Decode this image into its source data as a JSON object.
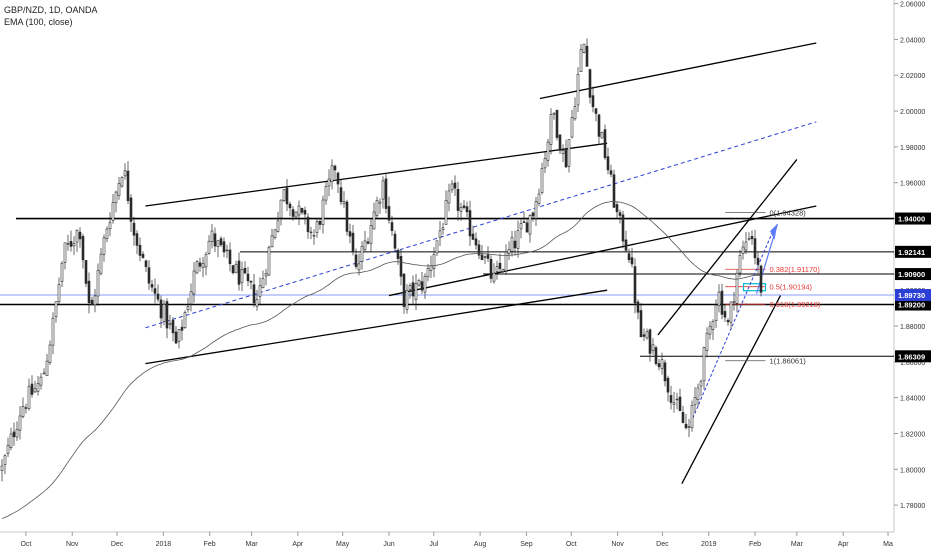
{
  "legend": {
    "title": "GBP/NZD, 1D, OANDA",
    "indicator": "EMA (100, close)"
  },
  "colors": {
    "candle": "#2a2a2a",
    "ema": "#555555",
    "channel": "#000000",
    "midline": "#2b3fd6",
    "current_line": "#3d5afe",
    "fib_red": "#e53935",
    "fib_box": "#00bcd4",
    "label_bg": "#000000",
    "current_label_bg": "#2b3fd6"
  },
  "chart_data": {
    "type": "candlestick",
    "title": "GBP/NZD, 1D, OANDA",
    "x_axis": {
      "ticks": [
        "Oct",
        "Nov",
        "Dec",
        "2018",
        "Feb",
        "Mar",
        "Apr",
        "May",
        "Jun",
        "Jul",
        "Aug",
        "Sep",
        "Oct",
        "Nov",
        "Dec",
        "2019",
        "Feb",
        "Mar",
        "Apr",
        "Ma"
      ]
    },
    "y_axis": {
      "range": [
        1.765,
        2.062
      ],
      "ticks": [
        "2.06000",
        "2.04000",
        "2.02000",
        "2.00000",
        "1.98000",
        "1.96000",
        "1.94000",
        "1.92000",
        "1.90000",
        "1.88000",
        "1.86000",
        "1.84000",
        "1.82000",
        "1.80000",
        "1.78000"
      ]
    },
    "price_levels": [
      {
        "price": 1.94,
        "label": "1.94000"
      },
      {
        "price": 1.92141,
        "label": "1.92141"
      },
      {
        "price": 1.909,
        "label": "1.90900"
      },
      {
        "price": 1.892,
        "label": "1.89200"
      },
      {
        "price": 1.86309,
        "label": "1.86309"
      }
    ],
    "current_price": {
      "price": 1.8973,
      "label": "1.89730"
    },
    "fib_levels": [
      {
        "label": "0(1.94328)",
        "price": 1.94328
      },
      {
        "label": "0.382(1.91170)",
        "price": 1.9117
      },
      {
        "label": "0.5(1.90194)",
        "price": 1.90194
      },
      {
        "label": "0.618(1.89218)",
        "price": 1.89218
      },
      {
        "label": "1(1.86061)",
        "price": 1.86061
      }
    ],
    "ema_period": 100,
    "anchors": [
      {
        "date": "2017-09-15",
        "price": 1.8
      },
      {
        "date": "2017-09-28",
        "price": 1.835
      },
      {
        "date": "2017-10-12",
        "price": 1.85
      },
      {
        "date": "2017-10-19",
        "price": 1.88
      },
      {
        "date": "2017-10-26",
        "price": 1.92
      },
      {
        "date": "2017-11-06",
        "price": 1.935
      },
      {
        "date": "2017-11-13",
        "price": 1.885
      },
      {
        "date": "2017-11-24",
        "price": 1.935
      },
      {
        "date": "2017-12-05",
        "price": 1.97
      },
      {
        "date": "2017-12-12",
        "price": 1.935
      },
      {
        "date": "2017-12-22",
        "price": 1.905
      },
      {
        "date": "2018-01-05",
        "price": 1.88
      },
      {
        "date": "2018-01-10",
        "price": 1.868
      },
      {
        "date": "2018-01-22",
        "price": 1.91
      },
      {
        "date": "2018-02-02",
        "price": 1.93
      },
      {
        "date": "2018-02-14",
        "price": 1.915
      },
      {
        "date": "2018-03-05",
        "price": 1.895
      },
      {
        "date": "2018-03-22",
        "price": 1.955
      },
      {
        "date": "2018-04-12",
        "price": 1.93
      },
      {
        "date": "2018-04-26",
        "price": 1.97
      },
      {
        "date": "2018-05-10",
        "price": 1.91
      },
      {
        "date": "2018-05-28",
        "price": 1.96
      },
      {
        "date": "2018-06-11",
        "price": 1.895
      },
      {
        "date": "2018-06-25",
        "price": 1.905
      },
      {
        "date": "2018-07-13",
        "price": 1.955
      },
      {
        "date": "2018-07-31",
        "price": 1.925
      },
      {
        "date": "2018-08-10",
        "price": 1.905
      },
      {
        "date": "2018-08-23",
        "price": 1.925
      },
      {
        "date": "2018-09-06",
        "price": 1.945
      },
      {
        "date": "2018-09-19",
        "price": 2.0
      },
      {
        "date": "2018-09-27",
        "price": 1.97
      },
      {
        "date": "2018-10-09",
        "price": 2.04
      },
      {
        "date": "2018-10-15",
        "price": 2.005
      },
      {
        "date": "2018-10-24",
        "price": 1.975
      },
      {
        "date": "2018-11-01",
        "price": 1.94
      },
      {
        "date": "2018-11-09",
        "price": 1.92
      },
      {
        "date": "2018-11-16",
        "price": 1.875
      },
      {
        "date": "2018-11-23",
        "price": 1.87
      },
      {
        "date": "2018-11-30",
        "price": 1.86
      },
      {
        "date": "2018-12-10",
        "price": 1.835
      },
      {
        "date": "2018-12-18",
        "price": 1.82
      },
      {
        "date": "2018-12-27",
        "price": 1.855
      },
      {
        "date": "2019-01-07",
        "price": 1.9
      },
      {
        "date": "2019-01-14",
        "price": 1.88
      },
      {
        "date": "2019-01-21",
        "price": 1.915
      },
      {
        "date": "2019-01-29",
        "price": 1.935
      },
      {
        "date": "2019-02-01",
        "price": 1.92
      },
      {
        "date": "2019-02-06",
        "price": 1.897
      }
    ],
    "annotations": {
      "channel_upper": [
        [
          "2017-12-20",
          1.947
        ],
        [
          "2018-10-25",
          1.982
        ]
      ],
      "channel_lower": [
        [
          "2017-12-20",
          1.859
        ],
        [
          "2018-10-25",
          1.9
        ]
      ],
      "outer_line": [
        [
          "2018-09-10",
          2.007
        ],
        [
          "2019-03-14",
          2.038
        ]
      ],
      "dashed_midline": [
        [
          "2017-12-20",
          1.879
        ],
        [
          "2019-03-14",
          1.994
        ]
      ],
      "lower_trend_line": [
        [
          "2018-06-01",
          1.897
        ],
        [
          "2019-03-14",
          1.947
        ]
      ],
      "rising_channel_upper": [
        [
          "2018-11-28",
          1.875
        ],
        [
          "2019-03-01",
          1.973
        ]
      ],
      "rising_channel_lower": [
        [
          "2018-12-14",
          1.792
        ],
        [
          "2019-02-18",
          1.897
        ]
      ]
    }
  }
}
